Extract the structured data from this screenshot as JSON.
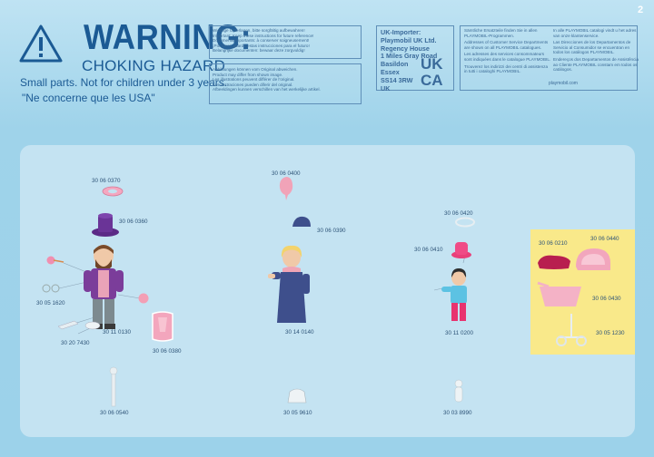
{
  "page_number": "2",
  "warning": {
    "title": "WARNING:",
    "subtitle": "CHOKING HAZARD",
    "small_parts": "Small parts. Not for children under 3 years.",
    "usa_note": "\"Ne concerne que les USA\""
  },
  "notices": {
    "storage": [
      "Wichtige Unterlagen, bitte sorgfältig aufbewahren!",
      "Important: Keep these instructions for future reference!",
      "Documents importants: à conserver soigneusement!",
      "¡Por favor, guarde estas instrucciones para el futuro!",
      "Belangrijke documenten: bewaar deze zorgvuldig!"
    ],
    "images": [
      "Abbildungen können vom Original abweichen.",
      "Product may differ from shown image.",
      "Les illustrations peuvent différer de l'original.",
      "Las ilustraciones pueden diferir del original.",
      "Afbeeldingen kunnen verschillen van het werkelijke artikel."
    ]
  },
  "uk_importer": {
    "lines": [
      "UK-Importer:",
      "Playmobil UK Ltd.",
      "Regency House",
      "1 Miles Gray Road",
      "Basildon",
      "Essex",
      "SS14 3RW",
      "UK"
    ],
    "mark": "UKCA"
  },
  "spare_parts": {
    "left": [
      "Sämtliche Ersatzteile finden Sie in allen PLAYMOBIL-Programmen.",
      "Addresses of Customer Service Departments are shown on all PLAYMOBIL catalogues.",
      "Les adresses des services consommateurs sont indiquées dans le catalogue PLAYMOBIL.",
      "Trouverez los indirizzi dei centri di assistenza in tutti i cataloghi PLAYMOBIL."
    ],
    "right": [
      "In alle PLAYMOBIL catalogi vindt u het adres van onze klantenservice.",
      "Las Direcciones de los Departamentos de Servicio al Consumidor se encuentran en todos los catálogos PLAYMOBIL.",
      "Endereços dos Departamentos de Assistência ao Cliente PLAYMOBIL constam em todos os catálogos."
    ],
    "note": "playmobil.com"
  },
  "parts": {
    "codes": [
      "30 06 0370",
      "30 06 0360",
      "30 05 1620",
      "30 11 0130",
      "30 20 7430",
      "30 06 0380",
      "30 06 0400",
      "30 06 0390",
      "30 14 0140",
      "30 06 0420",
      "30 06 0410",
      "30 11 0200",
      "30 06 0210",
      "30 06 0440",
      "30 06 0430",
      "30 05 1230",
      "30 06 0540",
      "30 05 9610",
      "30 03 8990"
    ]
  },
  "colors": {
    "brand_blue": "#1b5a94",
    "background": "#9cd2ea",
    "panel": "#c4e3f2",
    "highlight": "#f9e98a"
  }
}
